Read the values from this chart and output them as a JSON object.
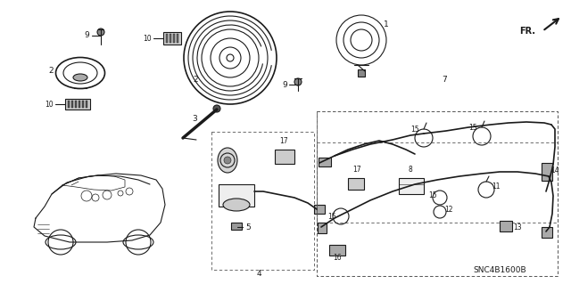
{
  "background_color": "#ffffff",
  "line_color": "#1a1a1a",
  "diagram_code": "SNC4B1600B",
  "figsize": [
    6.4,
    3.19
  ],
  "dpi": 100,
  "label_fontsize": 6.5,
  "small_fontsize": 5.5,
  "fr_arrow_color": "#000000"
}
